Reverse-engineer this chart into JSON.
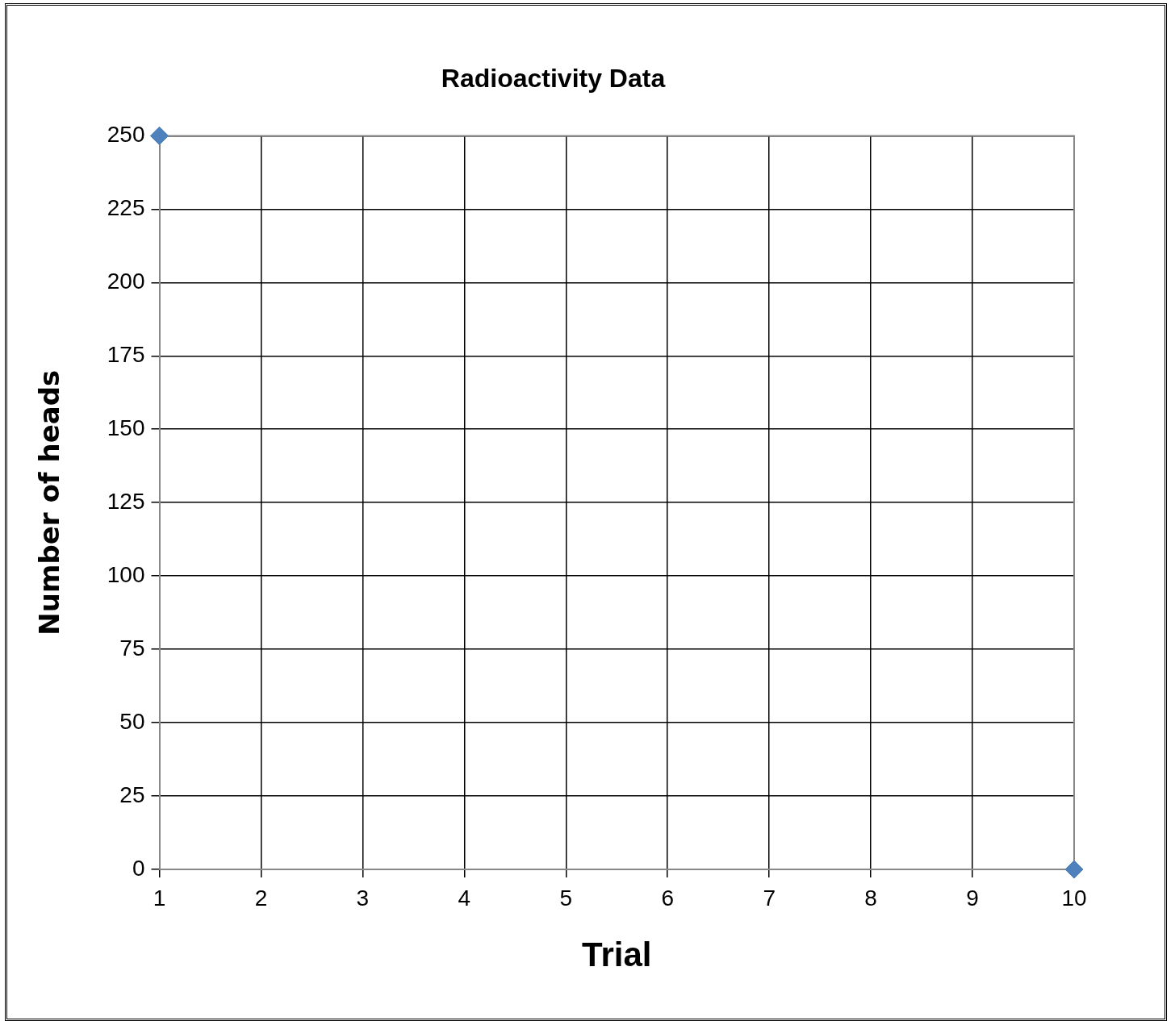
{
  "chart_data": {
    "type": "scatter",
    "title": "Radioactivity Data",
    "xlabel": "Trial",
    "ylabel": "Number of heads",
    "x": [
      1,
      10
    ],
    "series": [
      {
        "color": "#4f81bd",
        "values": [
          250,
          0
        ]
      }
    ],
    "xlim": [
      1,
      10
    ],
    "xticks": [
      1,
      2,
      3,
      4,
      5,
      6,
      7,
      8,
      9,
      10
    ],
    "ylim": [
      0,
      250
    ],
    "yticks": [
      0,
      25,
      50,
      75,
      100,
      125,
      150,
      175,
      200,
      225,
      250
    ],
    "grid": true,
    "marker": "diamond"
  }
}
